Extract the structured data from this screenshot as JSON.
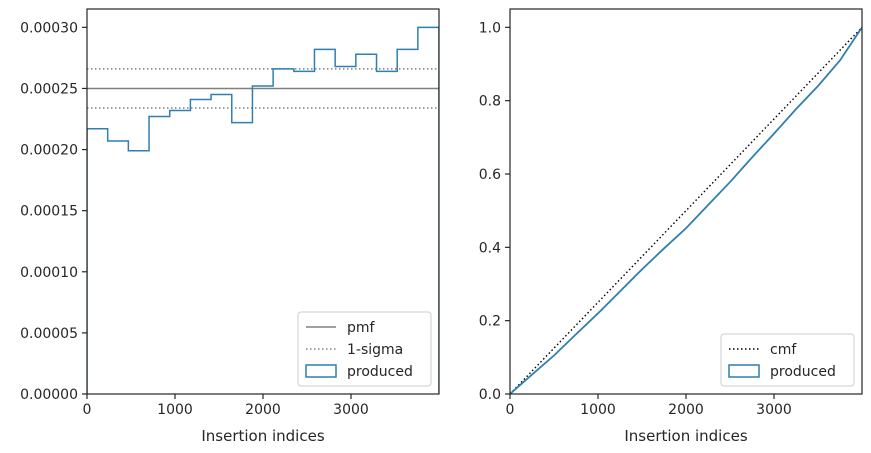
{
  "chart_data": [
    {
      "type": "step",
      "xlabel": "Insertion indices",
      "ylabel": "",
      "xlim": [
        0,
        4000
      ],
      "ylim": [
        0,
        0.000315
      ],
      "xticks": [
        0,
        1000,
        2000,
        3000
      ],
      "xtick_labels": [
        "0",
        "1000",
        "2000",
        "3000"
      ],
      "yticks": [
        0,
        5e-05,
        0.0001,
        0.00015,
        0.0002,
        0.00025,
        0.0003
      ],
      "ytick_labels": [
        "0.00000",
        "0.00005",
        "0.00010",
        "0.00015",
        "0.00020",
        "0.00025",
        "0.00030"
      ],
      "grid": false,
      "legend_position": "lower-right",
      "hlines": [
        {
          "name": "pmf",
          "y": 0.00025,
          "style": "solid",
          "color": "#808080"
        },
        {
          "name": "1-sigma",
          "y": 0.000266,
          "style": "dotted",
          "color": "#808080"
        },
        {
          "name": "1-sigma",
          "y": 0.000234,
          "style": "dotted",
          "color": "#808080"
        }
      ],
      "series": [
        {
          "name": "produced",
          "color": "#2f7fb0",
          "bin_edges": [
            0,
            235,
            470,
            705,
            940,
            1175,
            1410,
            1645,
            1880,
            2115,
            2350,
            2585,
            2820,
            3055,
            3290,
            3525,
            3760,
            4000
          ],
          "values": [
            0.000217,
            0.000207,
            0.000199,
            0.000227,
            0.000232,
            0.000241,
            0.000245,
            0.000222,
            0.000252,
            0.000266,
            0.000264,
            0.000282,
            0.000268,
            0.000278,
            0.000264,
            0.000282,
            0.0003
          ]
        }
      ],
      "legend": [
        "pmf",
        "1-sigma",
        "produced"
      ]
    },
    {
      "type": "line",
      "xlabel": "Insertion indices",
      "ylabel": "",
      "xlim": [
        0,
        4000
      ],
      "ylim": [
        0,
        1.05
      ],
      "xticks": [
        0,
        1000,
        2000,
        3000
      ],
      "xtick_labels": [
        "0",
        "1000",
        "2000",
        "3000"
      ],
      "yticks": [
        0,
        0.2,
        0.4,
        0.6,
        0.8,
        1.0
      ],
      "ytick_labels": [
        "0.0",
        "0.2",
        "0.4",
        "0.6",
        "0.8",
        "1.0"
      ],
      "grid": false,
      "legend_position": "lower-right",
      "series": [
        {
          "name": "cmf",
          "style": "dotted",
          "color": "#000000",
          "x": [
            0,
            4000
          ],
          "y": [
            0,
            1.0
          ]
        },
        {
          "name": "produced",
          "style": "solid",
          "color": "#2f7fb0",
          "x": [
            0,
            250,
            500,
            750,
            1000,
            1250,
            1500,
            1750,
            2000,
            2250,
            2500,
            2750,
            3000,
            3250,
            3500,
            3750,
            4000
          ],
          "y": [
            0,
            0.053,
            0.105,
            0.163,
            0.22,
            0.28,
            0.34,
            0.397,
            0.452,
            0.515,
            0.578,
            0.645,
            0.71,
            0.777,
            0.84,
            0.91,
            1.0
          ]
        }
      ],
      "legend": [
        "cmf",
        "produced"
      ]
    }
  ]
}
